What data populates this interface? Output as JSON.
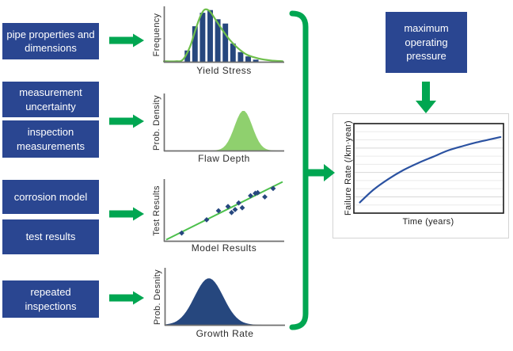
{
  "diagram": {
    "input_boxes": [
      {
        "label": "pipe properties and dimensions"
      },
      {
        "label": "measurement uncertainty"
      },
      {
        "label": "inspection measurements"
      },
      {
        "label": "corrosion model"
      },
      {
        "label": "test results"
      },
      {
        "label": "repeated inspections"
      }
    ],
    "output_box": {
      "label": "maximum operating pressure"
    },
    "colors": {
      "box_blue": "#2a4691",
      "arrow_green": "#00a651",
      "navy": "#26477e",
      "histogram_curve_green": "#6ebf4b",
      "density_fill_green": "#8fd06e",
      "scatter_line_green": "#4cc04c",
      "failure_curve_blue": "#2b52a1"
    }
  },
  "chart_data": [
    {
      "id": "yield-stress-histogram",
      "type": "bar",
      "xlabel": "Yield Stress",
      "ylabel": "Frequency",
      "values": [
        0.21,
        0.66,
        0.91,
        0.96,
        0.79,
        0.71,
        0.34,
        0.18,
        0.1,
        0.04
      ],
      "ylim": [
        0,
        1
      ],
      "fit_curve": [
        [
          0.0,
          0.01
        ],
        [
          0.1,
          0.01
        ],
        [
          0.16,
          0.04
        ],
        [
          0.22,
          0.28
        ],
        [
          0.27,
          0.62
        ],
        [
          0.31,
          0.86
        ],
        [
          0.345,
          0.97
        ],
        [
          0.385,
          0.94
        ],
        [
          0.43,
          0.8
        ],
        [
          0.49,
          0.6
        ],
        [
          0.55,
          0.42
        ],
        [
          0.62,
          0.26
        ],
        [
          0.7,
          0.13
        ],
        [
          0.8,
          0.06
        ],
        [
          0.9,
          0.025
        ],
        [
          1.0,
          0.01
        ]
      ],
      "bar_color": "#26477e",
      "curve_color": "#6ebf4b"
    },
    {
      "id": "flaw-depth-distribution",
      "type": "area",
      "xlabel": "Flaw Depth",
      "ylabel": "Prob. Density",
      "shape": "normal",
      "center": 0.67,
      "sigma": 0.075,
      "peak": 0.72,
      "fill_color": "#8fd06e"
    },
    {
      "id": "model-vs-test-scatter",
      "type": "scatter",
      "xlabel": "Model Results",
      "ylabel": "Test Results",
      "points": [
        [
          0.15,
          0.13
        ],
        [
          0.36,
          0.35
        ],
        [
          0.46,
          0.5
        ],
        [
          0.54,
          0.57
        ],
        [
          0.57,
          0.47
        ],
        [
          0.6,
          0.52
        ],
        [
          0.63,
          0.63
        ],
        [
          0.66,
          0.55
        ],
        [
          0.73,
          0.75
        ],
        [
          0.77,
          0.79
        ],
        [
          0.79,
          0.8
        ],
        [
          0.85,
          0.73
        ],
        [
          0.92,
          0.87
        ]
      ],
      "line": [
        [
          0.02,
          0.02
        ],
        [
          1.0,
          0.98
        ]
      ],
      "point_color": "#26477e",
      "line_color": "#4cc04c"
    },
    {
      "id": "growth-rate-distribution",
      "type": "area",
      "xlabel": "Growth Rate",
      "ylabel": "Prob. Desnity",
      "shape": "normal",
      "center": 0.37,
      "sigma": 0.12,
      "peak": 0.84,
      "fill_color": "#26477e"
    },
    {
      "id": "failure-rate-vs-time",
      "type": "line",
      "xlabel": "Time (years)",
      "ylabel": "Failure Rate (/km·year)",
      "grid": true,
      "points": [
        [
          0.04,
          0.12
        ],
        [
          0.13,
          0.26
        ],
        [
          0.23,
          0.38
        ],
        [
          0.33,
          0.48
        ],
        [
          0.43,
          0.56
        ],
        [
          0.53,
          0.63
        ],
        [
          0.63,
          0.7
        ],
        [
          0.73,
          0.75
        ],
        [
          0.82,
          0.79
        ],
        [
          0.9,
          0.82
        ],
        [
          0.98,
          0.85
        ]
      ],
      "line_color": "#2b52a1"
    }
  ]
}
